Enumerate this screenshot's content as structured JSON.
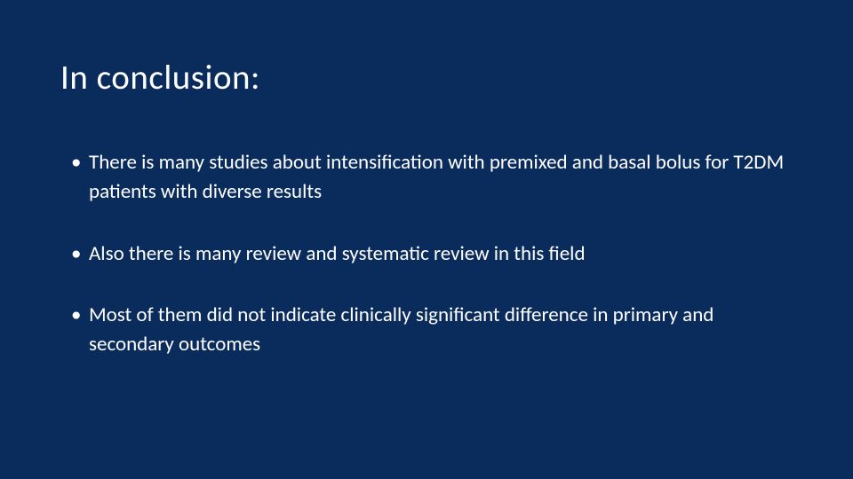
{
  "slide": {
    "background_color": "#0a2c5c",
    "text_color": "#ffffff",
    "title": "In conclusion:",
    "title_fontsize": 39,
    "bullet_fontsize": 23,
    "bullets": [
      "There is many studies about intensification with premixed and basal bolus for T2DM patients with diverse results",
      "Also there is many review and systematic review in this field",
      "Most of them did not indicate clinically significant difference in primary and secondary outcomes"
    ]
  }
}
